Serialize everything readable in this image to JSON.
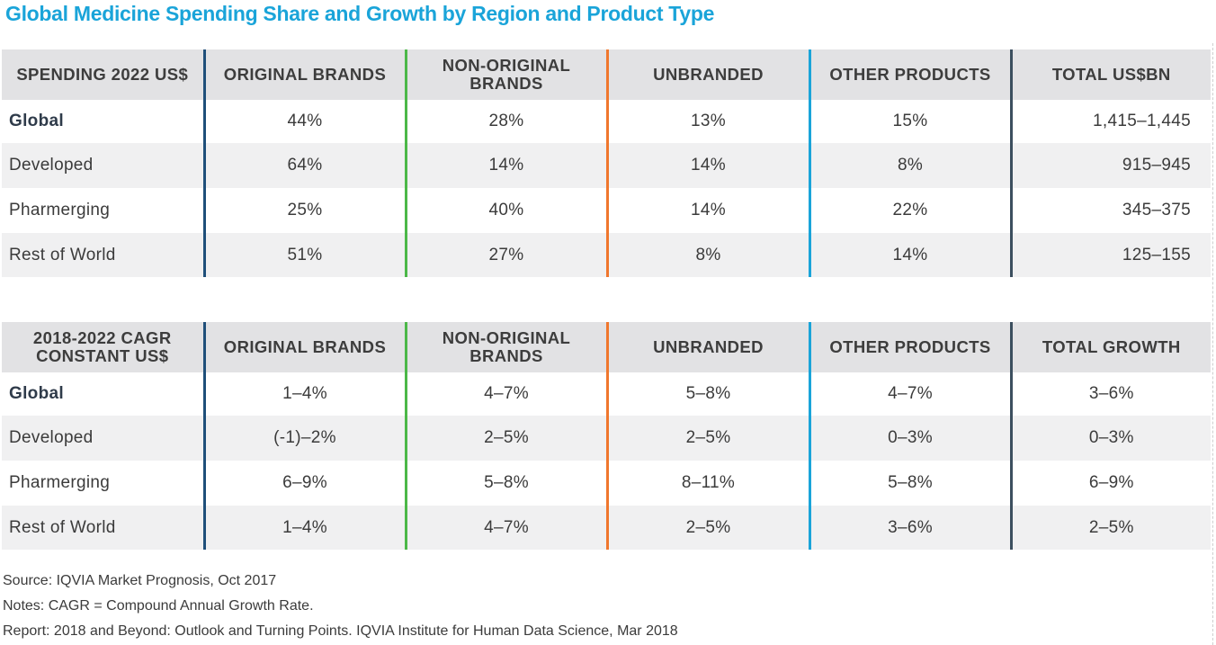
{
  "title": "Global Medicine Spending Share and Growth by Region and Product Type",
  "colors": {
    "title": "#1aa4d9",
    "original_brands": "#1f4f7a",
    "non_original_brands": "#4cb848",
    "unbranded": "#f0772d",
    "other_products": "#1aa4d9",
    "total": "#3c4f5f",
    "header_bg": "#e2e2e4",
    "band_bg": "#f0f0f1"
  },
  "chart_data": [
    {
      "type": "table",
      "title": "SPENDING 2022 US$",
      "columns": [
        "SPENDING 2022 US$",
        "ORIGINAL BRANDS",
        "NON-ORIGINAL BRANDS",
        "UNBRANDED",
        "OTHER PRODUCTS",
        "TOTAL US$BN"
      ],
      "rows": [
        [
          "Global",
          "44%",
          "28%",
          "13%",
          "15%",
          "1,415–1,445"
        ],
        [
          "Developed",
          "64%",
          "14%",
          "14%",
          "8%",
          "915–945"
        ],
        [
          "Pharmerging",
          "25%",
          "40%",
          "14%",
          "22%",
          "345–375"
        ],
        [
          "Rest of World",
          "51%",
          "27%",
          "8%",
          "14%",
          "125–155"
        ]
      ]
    },
    {
      "type": "table",
      "title": "2018-2022 CAGR CONSTANT US$",
      "columns": [
        "2018-2022 CAGR CONSTANT US$",
        "ORIGINAL BRANDS",
        "NON-ORIGINAL BRANDS",
        "UNBRANDED",
        "OTHER PRODUCTS",
        "TOTAL GROWTH"
      ],
      "rows": [
        [
          "Global",
          "1–4%",
          "4–7%",
          "5–8%",
          "4–7%",
          "3–6%"
        ],
        [
          "Developed",
          "(-1)–2%",
          "2–5%",
          "2–5%",
          "0–3%",
          "0–3%"
        ],
        [
          "Pharmerging",
          "6–9%",
          "5–8%",
          "8–11%",
          "5–8%",
          "6–9%"
        ],
        [
          "Rest of World",
          "1–4%",
          "4–7%",
          "2–5%",
          "3–6%",
          "2–5%"
        ]
      ]
    }
  ],
  "footer": {
    "source": "Source: IQVIA Market Prognosis, Oct 2017",
    "notes": "Notes: CAGR = Compound Annual Growth Rate.",
    "report": "Report: 2018 and Beyond: Outlook and Turning Points. IQVIA Institute for Human Data Science, Mar 2018"
  }
}
